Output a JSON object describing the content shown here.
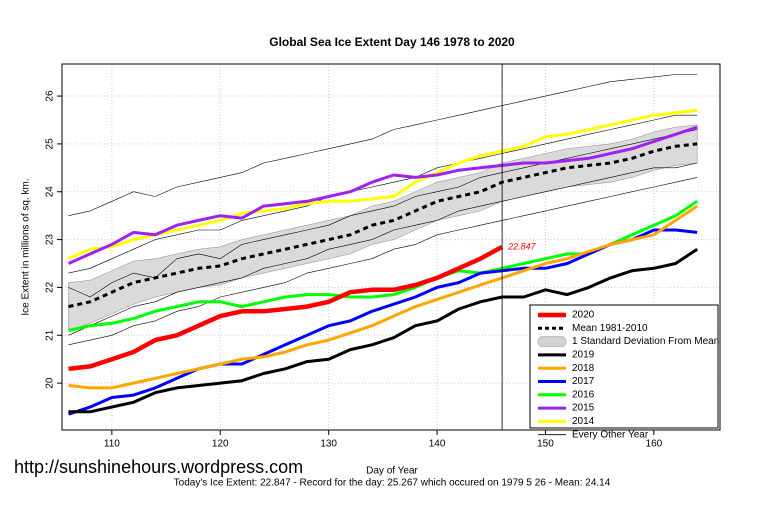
{
  "chart_data": {
    "type": "line",
    "title": "Global Sea Ice Extent Day 146 1978 to 2020",
    "x_label": "Day of Year",
    "y_label": "Ice Extent in millions of sq. km.",
    "footer": "Today's Ice Extent: 22.847  - Record for the day: 25.267 which occured on 1979 5 26  - Mean: 24.14",
    "watermark": "http://sunshinehours.wordpress.com",
    "x": [
      106,
      108,
      110,
      112,
      114,
      116,
      118,
      120,
      122,
      124,
      126,
      128,
      130,
      132,
      134,
      136,
      138,
      140,
      142,
      144,
      146,
      148,
      150,
      152,
      154,
      156,
      158,
      160,
      162,
      164
    ],
    "xlim": [
      105.4,
      166.1
    ],
    "ylim": [
      19.02,
      26.67
    ],
    "xticks": [
      110,
      120,
      130,
      140,
      150,
      160
    ],
    "yticks": [
      20,
      21,
      22,
      23,
      24,
      25,
      26
    ],
    "grid": true,
    "vline_x": 146,
    "legend": "bottom-right",
    "series": [
      {
        "name": "2020",
        "color": "#ff0000",
        "style": "thick",
        "values": [
          20.3,
          20.35,
          20.5,
          20.65,
          20.9,
          21.0,
          21.2,
          21.4,
          21.5,
          21.5,
          21.55,
          21.6,
          21.7,
          21.9,
          21.95,
          21.95,
          22.05,
          22.2,
          22.4,
          22.6,
          22.847,
          null,
          null,
          null,
          null,
          null,
          null,
          null,
          null,
          null
        ]
      },
      {
        "name": "Mean 1981-2010",
        "color": "#000000",
        "style": "dashed",
        "values": [
          21.6,
          21.7,
          21.9,
          22.1,
          22.2,
          22.3,
          22.4,
          22.45,
          22.6,
          22.7,
          22.8,
          22.9,
          23.0,
          23.1,
          23.3,
          23.4,
          23.6,
          23.8,
          23.9,
          24.0,
          24.2,
          24.3,
          24.4,
          24.5,
          24.55,
          24.6,
          24.7,
          24.85,
          24.95,
          25.0
        ]
      },
      {
        "name": "1 Standard Deviation From Mean",
        "color": "#d3d3d3",
        "style": "band",
        "lower": [
          21.1,
          21.25,
          21.45,
          21.65,
          21.8,
          21.9,
          22.0,
          22.05,
          22.2,
          22.3,
          22.4,
          22.5,
          22.6,
          22.7,
          22.9,
          23.0,
          23.2,
          23.4,
          23.5,
          23.6,
          23.8,
          23.9,
          24.0,
          24.1,
          24.15,
          24.2,
          24.3,
          24.45,
          24.55,
          24.6
        ],
        "upper": [
          22.1,
          22.15,
          22.35,
          22.55,
          22.6,
          22.7,
          22.8,
          22.85,
          23.0,
          23.1,
          23.2,
          23.3,
          23.4,
          23.5,
          23.7,
          23.8,
          24.0,
          24.2,
          24.3,
          24.4,
          24.6,
          24.7,
          24.8,
          24.9,
          24.95,
          25.0,
          25.1,
          25.25,
          25.35,
          25.4
        ]
      },
      {
        "name": "2019",
        "color": "#000000",
        "style": "thick",
        "values": [
          19.4,
          19.4,
          19.5,
          19.6,
          19.8,
          19.9,
          19.95,
          20.0,
          20.05,
          20.2,
          20.3,
          20.45,
          20.5,
          20.7,
          20.8,
          20.95,
          21.2,
          21.3,
          21.55,
          21.7,
          21.8,
          21.8,
          21.95,
          21.85,
          22.0,
          22.2,
          22.35,
          22.4,
          22.5,
          22.8
        ]
      },
      {
        "name": "2018",
        "color": "#ffa500",
        "style": "thick",
        "values": [
          19.95,
          19.9,
          19.9,
          20.0,
          20.1,
          20.2,
          20.3,
          20.4,
          20.5,
          20.55,
          20.65,
          20.8,
          20.9,
          21.05,
          21.2,
          21.4,
          21.6,
          21.75,
          21.9,
          22.05,
          22.2,
          22.35,
          22.5,
          22.6,
          22.75,
          22.9,
          23.0,
          23.1,
          23.4,
          23.7
        ]
      },
      {
        "name": "2017",
        "color": "#0000ff",
        "style": "thick",
        "values": [
          19.35,
          19.5,
          19.7,
          19.75,
          19.9,
          20.1,
          20.3,
          20.4,
          20.4,
          20.6,
          20.8,
          21.0,
          21.2,
          21.3,
          21.5,
          21.65,
          21.8,
          22.0,
          22.1,
          22.3,
          22.35,
          22.4,
          22.4,
          22.5,
          22.7,
          22.9,
          23.0,
          23.2,
          23.2,
          23.15
        ]
      },
      {
        "name": "2016",
        "color": "#00ff00",
        "style": "thick",
        "values": [
          21.1,
          21.2,
          21.25,
          21.35,
          21.5,
          21.6,
          21.7,
          21.7,
          21.6,
          21.7,
          21.8,
          21.85,
          21.85,
          21.8,
          21.8,
          21.85,
          22.0,
          22.2,
          22.35,
          22.3,
          22.4,
          22.5,
          22.6,
          22.7,
          22.7,
          22.9,
          23.1,
          23.3,
          23.5,
          23.8
        ]
      },
      {
        "name": "2015",
        "color": "#a020f0",
        "style": "thick",
        "values": [
          22.5,
          22.7,
          22.9,
          23.15,
          23.1,
          23.3,
          23.4,
          23.5,
          23.45,
          23.7,
          23.75,
          23.8,
          23.9,
          24.0,
          24.2,
          24.35,
          24.3,
          24.35,
          24.45,
          24.5,
          24.55,
          24.6,
          24.6,
          24.65,
          24.7,
          24.8,
          24.9,
          25.05,
          25.2,
          25.35
        ]
      },
      {
        "name": "2014",
        "color": "#ffff00",
        "style": "thick",
        "values": [
          22.6,
          22.8,
          22.85,
          23.0,
          23.1,
          23.2,
          23.3,
          23.4,
          23.55,
          23.6,
          23.65,
          23.75,
          23.8,
          23.8,
          23.85,
          23.9,
          24.2,
          24.4,
          24.6,
          24.75,
          24.85,
          24.95,
          25.15,
          25.2,
          25.3,
          25.4,
          25.5,
          25.6,
          25.65,
          25.7
        ]
      },
      {
        "name": "Every Other Year",
        "color": "#000000",
        "style": "thin",
        "lines": [
          [
            23.5,
            23.6,
            23.8,
            24.0,
            23.9,
            24.1,
            24.2,
            24.3,
            24.4,
            24.6,
            24.7,
            24.8,
            24.9,
            25.0,
            25.1,
            25.3,
            25.4,
            25.5,
            25.6,
            25.7,
            25.8,
            25.9,
            26.0,
            26.1,
            26.2,
            26.3,
            26.35,
            26.4,
            26.45,
            26.45
          ],
          [
            22.3,
            22.4,
            22.6,
            22.8,
            23.0,
            23.1,
            23.2,
            23.2,
            23.4,
            23.5,
            23.6,
            23.7,
            23.9,
            24.0,
            24.1,
            24.2,
            24.3,
            24.5,
            24.6,
            24.7,
            24.8,
            24.9,
            25.0,
            25.1,
            25.2,
            25.3,
            25.4,
            25.5,
            25.6,
            25.6
          ],
          [
            21.0,
            21.2,
            21.4,
            21.6,
            21.7,
            21.9,
            22.0,
            22.1,
            22.2,
            22.4,
            22.5,
            22.6,
            22.8,
            22.9,
            23.0,
            23.2,
            23.3,
            23.4,
            23.6,
            23.7,
            23.8,
            23.9,
            24.0,
            24.1,
            24.2,
            24.3,
            24.4,
            24.5,
            24.5,
            24.6
          ],
          [
            20.8,
            20.9,
            21.0,
            21.2,
            21.3,
            21.5,
            21.6,
            21.8,
            21.9,
            22.0,
            22.1,
            22.3,
            22.4,
            22.5,
            22.6,
            22.8,
            22.9,
            23.1,
            23.2,
            23.3,
            23.4,
            23.5,
            23.6,
            23.7,
            23.8,
            23.9,
            24.0,
            24.1,
            24.2,
            24.3
          ],
          [
            22.0,
            21.8,
            22.1,
            22.3,
            22.2,
            22.6,
            22.7,
            22.6,
            22.9,
            23.0,
            23.1,
            23.2,
            23.3,
            23.5,
            23.6,
            23.7,
            23.9,
            24.0,
            24.1,
            24.3,
            24.4,
            24.5,
            24.6,
            24.7,
            24.8,
            24.9,
            25.0,
            25.1,
            25.2,
            25.3
          ]
        ]
      }
    ]
  }
}
